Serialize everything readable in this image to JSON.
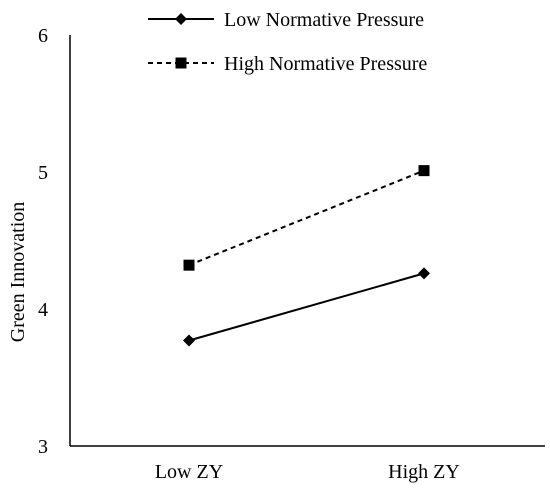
{
  "chart_data": {
    "type": "line",
    "categories": [
      "Low ZY",
      "High ZY"
    ],
    "series": [
      {
        "name": "Low Normative Pressure",
        "values": [
          3.77,
          4.26
        ],
        "line_style": "solid",
        "marker": "diamond"
      },
      {
        "name": "High Normative Pressure",
        "values": [
          4.32,
          5.01
        ],
        "line_style": "dashed",
        "marker": "square"
      }
    ],
    "title": "",
    "xlabel": "",
    "ylabel": "Green Innovation",
    "ylim": [
      3,
      6
    ],
    "yticks": [
      "3",
      "4",
      "5",
      "6"
    ],
    "grid": false,
    "legend_position": "top-right",
    "color": "#000000"
  }
}
